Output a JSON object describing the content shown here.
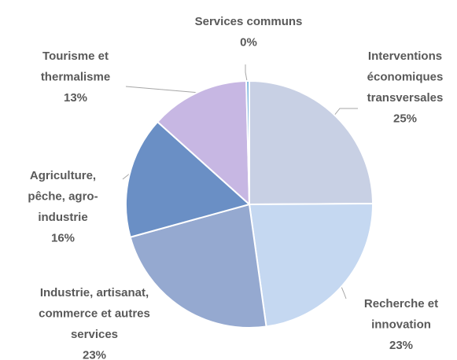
{
  "chart_data": {
    "type": "pie",
    "categories": [
      "Interventions\néconomiques\ntransversales",
      "Recherche et\ninnovation",
      "Industrie, artisanat,\ncommerce et autres\nservices",
      "Agriculture,\npêche, agro-\nindustrie",
      "Tourisme et\nthermalisme",
      "Services communs"
    ],
    "values": [
      25,
      23,
      23,
      16,
      13,
      0.4
    ],
    "value_labels": [
      "25%",
      "23%",
      "23%",
      "16%",
      "13%",
      "0%"
    ],
    "colors": [
      "#c8d0e4",
      "#c5d8f1",
      "#95a9d0",
      "#6a8fc5",
      "#c7b7e3",
      "#7fb8e0"
    ]
  }
}
